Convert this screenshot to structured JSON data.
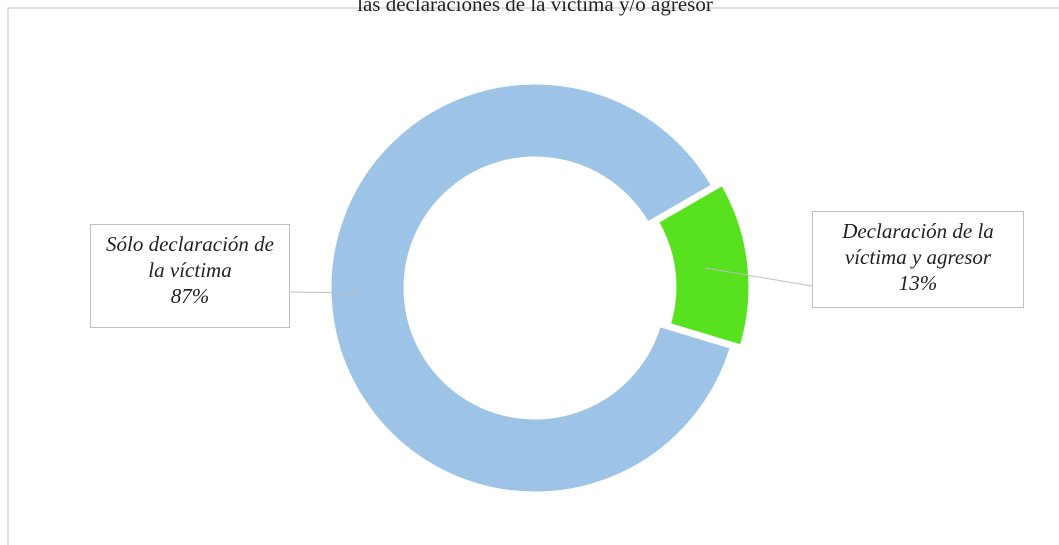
{
  "chart_data": {
    "type": "donut",
    "title": "las declaraciones de la víctima y/o agresor",
    "categories": [
      "Sólo declaración de la víctima",
      "Declaración de la víctima y agresor"
    ],
    "values": [
      87,
      13
    ],
    "value_labels": [
      "87%",
      "13%"
    ],
    "colors": [
      "#9dc3e6",
      "#57e11f"
    ]
  }
}
